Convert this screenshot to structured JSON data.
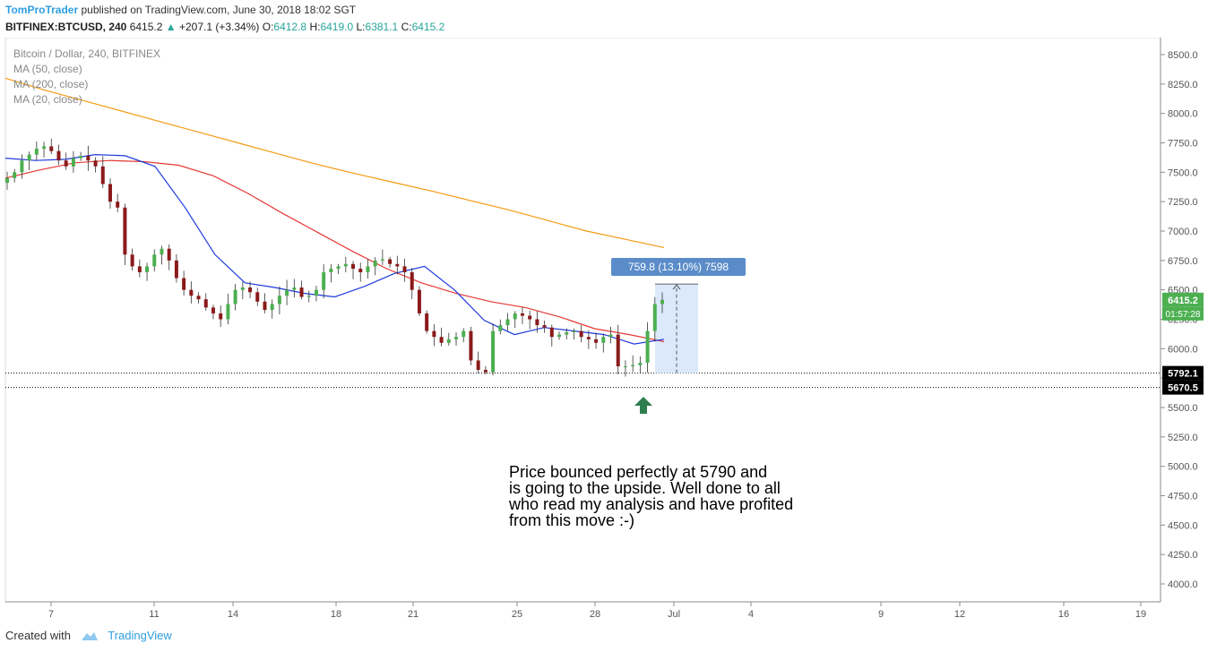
{
  "header": {
    "author": "TomProTrader",
    "published": "published on TradingView.com, June 30, 2018 18:02 SGT",
    "symbol": "BITFINEX:BTCUSD, 240",
    "last": "6415.2",
    "change": "+207.1 (+3.34%)",
    "o_label": "O:",
    "o_value": "6412.8",
    "h_label": "H:",
    "h_value": "6419.0",
    "l_label": "L:",
    "l_value": "6381.1",
    "c_label": "C:",
    "c_value": "6415.2"
  },
  "legend": {
    "title": "Bitcoin / Dollar, 240, BITFINEX",
    "ma50": "MA (50, close)",
    "ma200": "MA (200, close)",
    "ma20": "MA (20, close)"
  },
  "annotation": "Price bounced perfectly at 5790 and\nis going to the upside. Well done to all\nwho read my analysis and have profited\nfrom this move :-)",
  "footer": {
    "created_with": "Created with",
    "brand": "TradingView"
  },
  "colors": {
    "up": "#26a69a",
    "bull_candle": "#4caf50",
    "bear_candle": "#8b1a1a",
    "ma50": "#e53935",
    "ma200": "#f39c12",
    "ma20": "#1e3adb",
    "measure": "#5b8cc9",
    "measure_fill": "#dbe9fb",
    "arrow": "#2e7d4f",
    "price_tag": "#4caf50",
    "level_tag": "#000000"
  },
  "chart_data": {
    "type": "candlestick",
    "y_ticks": [
      "8500.0",
      "8250.0",
      "8000.0",
      "7750.0",
      "7500.0",
      "7250.0",
      "7000.0",
      "6750.0",
      "6500.0",
      "6250.0",
      "6000.0",
      "5750.0",
      "5500.0",
      "5250.0",
      "5000.0",
      "4750.0",
      "4500.0",
      "4250.0",
      "4000.0"
    ],
    "ylim": [
      3900,
      8600
    ],
    "x_ticks": [
      "7",
      "11",
      "14",
      "18",
      "21",
      "25",
      "28",
      "Jul",
      "4",
      "9",
      "12",
      "16",
      "19"
    ],
    "last_price_label": "6415.2",
    "countdown_label": "01:57:28",
    "levels": [
      5792.1,
      5670.5
    ],
    "level_labels": [
      "5792.1",
      "5670.5"
    ],
    "measure_label": "759.8 (13.10%) 7598",
    "ma200": [
      8300,
      8200,
      8110,
      8020,
      7930,
      7840,
      7750,
      7660,
      7570,
      7490,
      7415,
      7340,
      7260,
      7180,
      7090,
      7000,
      6930,
      6860
    ],
    "ma50": [
      7450,
      7520,
      7580,
      7600,
      7590,
      7560,
      7470,
      7320,
      7150,
      6990,
      6830,
      6680,
      6560,
      6470,
      6400,
      6350,
      6270,
      6170,
      6120,
      6060
    ],
    "ma20": [
      7620,
      7600,
      7610,
      7650,
      7640,
      7550,
      7200,
      6800,
      6560,
      6520,
      6470,
      6440,
      6530,
      6640,
      6700,
      6500,
      6240,
      6120,
      6180,
      6150,
      6120,
      6040,
      6080
    ]
  }
}
